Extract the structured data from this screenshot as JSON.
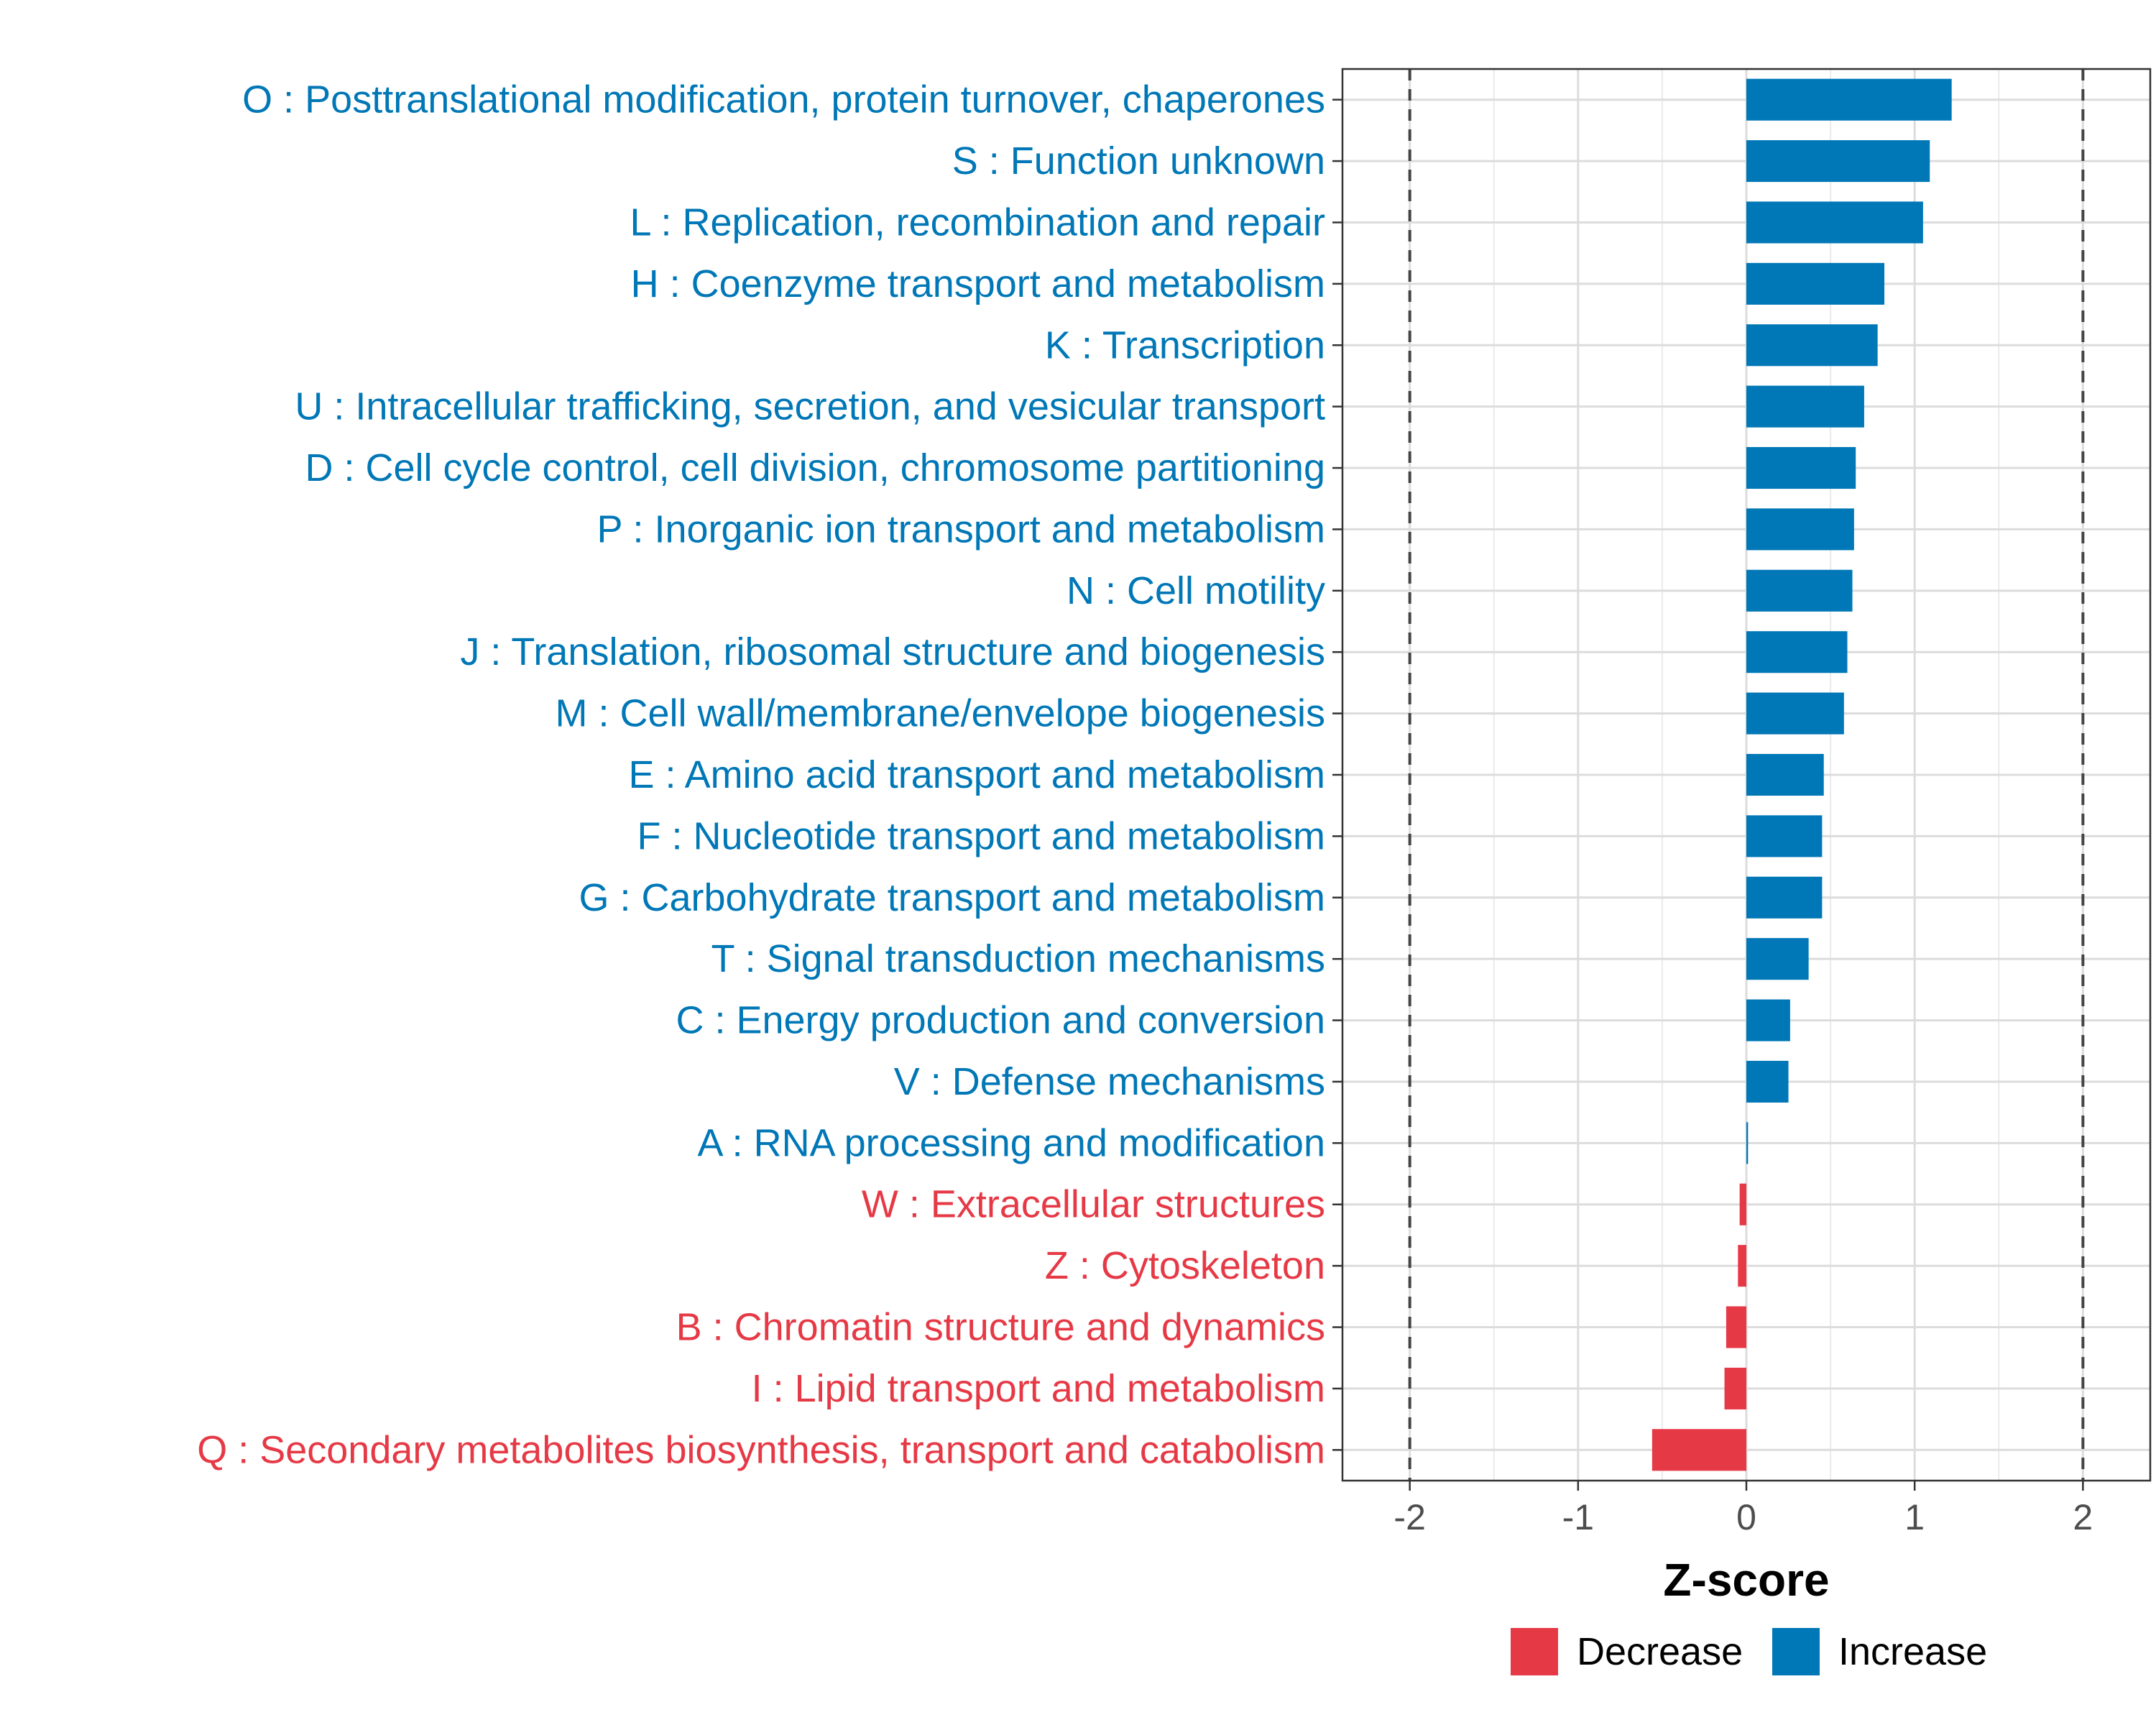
{
  "chart_data": {
    "type": "bar",
    "orientation": "horizontal",
    "title": "",
    "xlabel": "Z-score",
    "ylabel": "",
    "xlim": [
      -2.4,
      2.4
    ],
    "xticks": [
      "-2",
      "-1",
      "0",
      "1",
      "2"
    ],
    "xtick_values": [
      -2,
      -1,
      0,
      1,
      2
    ],
    "reference_lines": [
      -2,
      2
    ],
    "grid": true,
    "colors": {
      "Decrease": "#e63946",
      "Increase": "#0077b6"
    },
    "categories": [
      "O : Posttranslational modification, protein turnover, chaperones",
      "S : Function unknown",
      "L : Replication, recombination and repair",
      "H : Coenzyme transport and metabolism",
      "K : Transcription",
      "U : Intracellular trafficking, secretion, and vesicular transport",
      "D : Cell cycle control, cell division, chromosome partitioning",
      "P : Inorganic ion transport and metabolism",
      "N : Cell motility",
      "J : Translation, ribosomal structure and biogenesis",
      "M : Cell wall/membrane/envelope biogenesis",
      "E : Amino acid transport and metabolism",
      "F : Nucleotide transport and metabolism",
      "G : Carbohydrate transport and metabolism",
      "T : Signal transduction mechanisms",
      "C : Energy production and conversion",
      "V : Defense mechanisms",
      "A : RNA processing and modification",
      "W : Extracellular structures",
      "Z : Cytoskeleton",
      "B : Chromatin structure and dynamics",
      "I : Lipid transport and metabolism",
      "Q : Secondary metabolites biosynthesis, transport and catabolism"
    ],
    "values": [
      1.22,
      1.09,
      1.05,
      0.82,
      0.78,
      0.7,
      0.65,
      0.64,
      0.63,
      0.6,
      0.58,
      0.46,
      0.45,
      0.45,
      0.37,
      0.26,
      0.25,
      0.01,
      -0.04,
      -0.05,
      -0.12,
      -0.13,
      -0.56
    ],
    "groups": [
      "Increase",
      "Increase",
      "Increase",
      "Increase",
      "Increase",
      "Increase",
      "Increase",
      "Increase",
      "Increase",
      "Increase",
      "Increase",
      "Increase",
      "Increase",
      "Increase",
      "Increase",
      "Increase",
      "Increase",
      "Increase",
      "Decrease",
      "Decrease",
      "Decrease",
      "Decrease",
      "Decrease"
    ],
    "legend": {
      "position": "bottom",
      "entries": [
        {
          "label": "Decrease",
          "color": "#e63946"
        },
        {
          "label": "Increase",
          "color": "#0077b6"
        }
      ]
    }
  }
}
